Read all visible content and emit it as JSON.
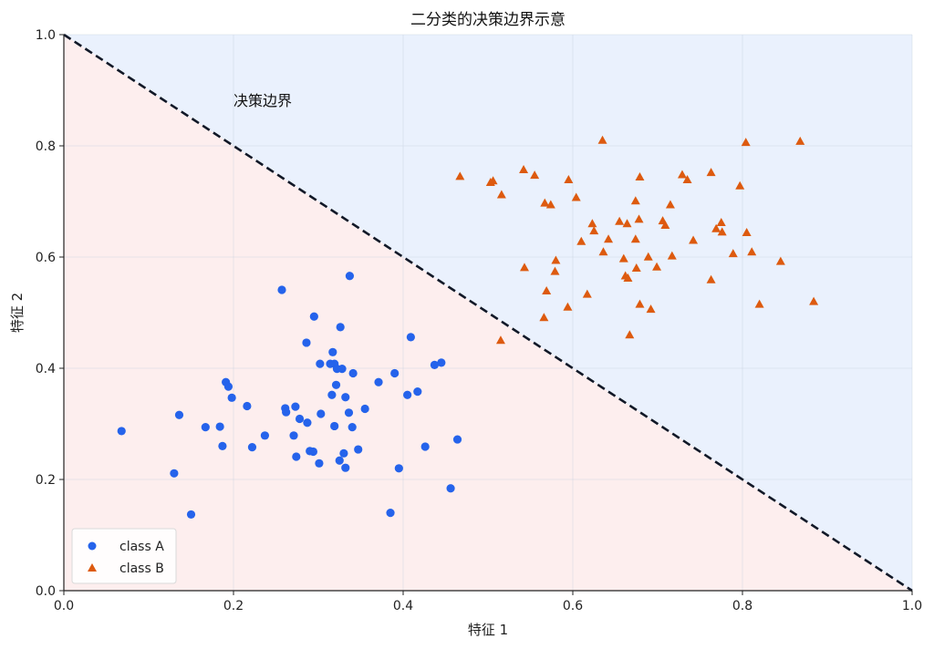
{
  "chart_data": {
    "type": "scatter",
    "title": "二分类的决策边界示意",
    "xlabel": "特征 1",
    "ylabel": "特征 2",
    "xlim": [
      0.0,
      1.0
    ],
    "ylim": [
      0.0,
      1.0
    ],
    "xticks": [
      "0.0",
      "0.2",
      "0.4",
      "0.6",
      "0.8",
      "1.0"
    ],
    "yticks": [
      "0.0",
      "0.2",
      "0.4",
      "0.6",
      "0.8",
      "1.0"
    ],
    "grid": true,
    "legend_position": "bottom-left",
    "region_colors": {
      "below": "#fdeeee",
      "above": "#eaf1fd"
    },
    "decision_boundary": {
      "label": "决策边界",
      "label_at": [
        0.2,
        0.88
      ],
      "from": [
        0.0,
        1.0
      ],
      "to": [
        1.0,
        0.0
      ],
      "color": "#111827",
      "style": "dashed"
    },
    "series": [
      {
        "name": "class A",
        "marker": "circle",
        "color": "#2563eb",
        "points": [
          [
            0.068,
            0.287
          ],
          [
            0.13,
            0.211
          ],
          [
            0.136,
            0.316
          ],
          [
            0.15,
            0.137
          ],
          [
            0.167,
            0.294
          ],
          [
            0.184,
            0.295
          ],
          [
            0.187,
            0.26
          ],
          [
            0.191,
            0.375
          ],
          [
            0.194,
            0.367
          ],
          [
            0.198,
            0.347
          ],
          [
            0.216,
            0.332
          ],
          [
            0.222,
            0.258
          ],
          [
            0.237,
            0.279
          ],
          [
            0.257,
            0.541
          ],
          [
            0.261,
            0.328
          ],
          [
            0.262,
            0.321
          ],
          [
            0.271,
            0.279
          ],
          [
            0.273,
            0.331
          ],
          [
            0.274,
            0.241
          ],
          [
            0.278,
            0.309
          ],
          [
            0.286,
            0.446
          ],
          [
            0.287,
            0.302
          ],
          [
            0.29,
            0.251
          ],
          [
            0.294,
            0.25
          ],
          [
            0.295,
            0.493
          ],
          [
            0.301,
            0.229
          ],
          [
            0.302,
            0.408
          ],
          [
            0.303,
            0.318
          ],
          [
            0.314,
            0.408
          ],
          [
            0.316,
            0.352
          ],
          [
            0.317,
            0.429
          ],
          [
            0.319,
            0.408
          ],
          [
            0.319,
            0.296
          ],
          [
            0.321,
            0.37
          ],
          [
            0.322,
            0.399
          ],
          [
            0.325,
            0.234
          ],
          [
            0.326,
            0.474
          ],
          [
            0.328,
            0.399
          ],
          [
            0.33,
            0.247
          ],
          [
            0.332,
            0.348
          ],
          [
            0.332,
            0.221
          ],
          [
            0.336,
            0.32
          ],
          [
            0.337,
            0.566
          ],
          [
            0.34,
            0.294
          ],
          [
            0.341,
            0.391
          ],
          [
            0.347,
            0.254
          ],
          [
            0.355,
            0.327
          ],
          [
            0.371,
            0.375
          ],
          [
            0.385,
            0.14
          ],
          [
            0.39,
            0.391
          ],
          [
            0.395,
            0.22
          ],
          [
            0.405,
            0.352
          ],
          [
            0.409,
            0.456
          ],
          [
            0.417,
            0.358
          ],
          [
            0.426,
            0.259
          ],
          [
            0.437,
            0.406
          ],
          [
            0.445,
            0.41
          ],
          [
            0.456,
            0.184
          ],
          [
            0.464,
            0.272
          ]
        ]
      },
      {
        "name": "class B",
        "marker": "triangle",
        "color": "#dd5a0f",
        "points": [
          [
            0.467,
            0.745
          ],
          [
            0.503,
            0.734
          ],
          [
            0.506,
            0.737
          ],
          [
            0.515,
            0.45
          ],
          [
            0.516,
            0.712
          ],
          [
            0.542,
            0.757
          ],
          [
            0.543,
            0.581
          ],
          [
            0.555,
            0.747
          ],
          [
            0.566,
            0.491
          ],
          [
            0.567,
            0.697
          ],
          [
            0.569,
            0.539
          ],
          [
            0.574,
            0.694
          ],
          [
            0.579,
            0.574
          ],
          [
            0.58,
            0.594
          ],
          [
            0.594,
            0.51
          ],
          [
            0.595,
            0.739
          ],
          [
            0.604,
            0.707
          ],
          [
            0.61,
            0.628
          ],
          [
            0.617,
            0.533
          ],
          [
            0.623,
            0.66
          ],
          [
            0.625,
            0.647
          ],
          [
            0.635,
            0.81
          ],
          [
            0.636,
            0.609
          ],
          [
            0.642,
            0.632
          ],
          [
            0.655,
            0.664
          ],
          [
            0.66,
            0.597
          ],
          [
            0.662,
            0.566
          ],
          [
            0.664,
            0.66
          ],
          [
            0.665,
            0.562
          ],
          [
            0.667,
            0.46
          ],
          [
            0.674,
            0.701
          ],
          [
            0.674,
            0.632
          ],
          [
            0.675,
            0.58
          ],
          [
            0.678,
            0.668
          ],
          [
            0.679,
            0.744
          ],
          [
            0.679,
            0.515
          ],
          [
            0.689,
            0.6
          ],
          [
            0.692,
            0.506
          ],
          [
            0.699,
            0.582
          ],
          [
            0.706,
            0.665
          ],
          [
            0.709,
            0.657
          ],
          [
            0.715,
            0.694
          ],
          [
            0.717,
            0.602
          ],
          [
            0.729,
            0.748
          ],
          [
            0.735,
            0.739
          ],
          [
            0.742,
            0.63
          ],
          [
            0.763,
            0.752
          ],
          [
            0.763,
            0.559
          ],
          [
            0.769,
            0.651
          ],
          [
            0.775,
            0.662
          ],
          [
            0.776,
            0.645
          ],
          [
            0.789,
            0.606
          ],
          [
            0.797,
            0.728
          ],
          [
            0.804,
            0.806
          ],
          [
            0.805,
            0.644
          ],
          [
            0.811,
            0.609
          ],
          [
            0.82,
            0.515
          ],
          [
            0.845,
            0.592
          ],
          [
            0.868,
            0.808
          ],
          [
            0.884,
            0.52
          ]
        ]
      }
    ]
  }
}
